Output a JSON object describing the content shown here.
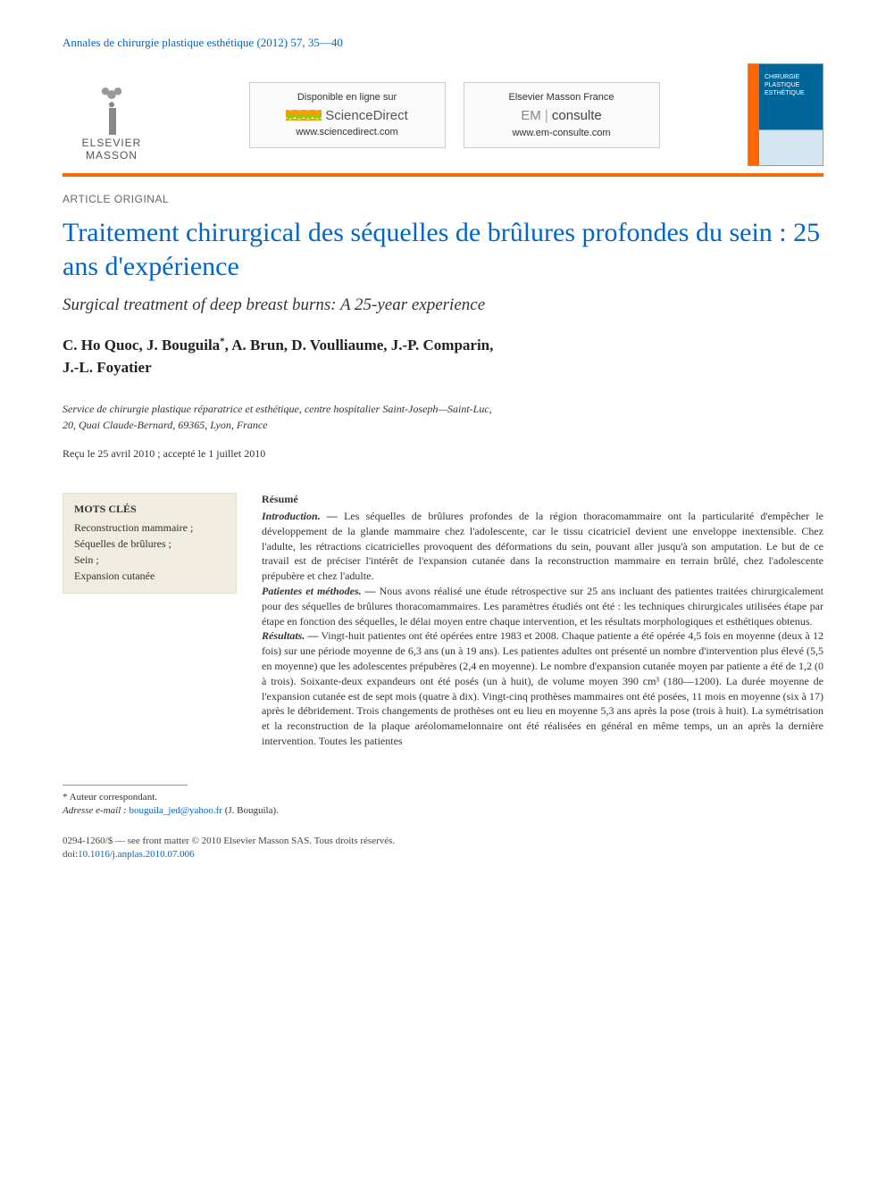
{
  "journal_ref": "Annales de chirurgie plastique esthétique (2012) 57, 35—40",
  "publisher": {
    "name1": "ELSEVIER",
    "name2": "MASSON"
  },
  "boxes": {
    "left": {
      "top": "Disponible en ligne sur",
      "brand": "ScienceDirect",
      "url": "www.sciencedirect.com"
    },
    "right": {
      "top": "Elsevier Masson France",
      "brand_em": "EM",
      "brand_consulte": "consulte",
      "url": "www.em-consulte.com"
    }
  },
  "cover": {
    "word1": "CHIRURGIE",
    "word2": "PLASTIQUE",
    "word3": "ESTHÉTIQUE"
  },
  "article_type": "ARTICLE ORIGINAL",
  "title_fr": "Traitement chirurgical des séquelles de brûlures profondes du sein : 25 ans d'expérience",
  "title_en": "Surgical treatment of deep breast burns: A 25-year experience",
  "authors_line1": "C. Ho Quoc, J. Bouguila",
  "authors_star": "*",
  "authors_line1b": ", A. Brun, D. Voulliaume, J.-P. Comparin,",
  "authors_line2": "J.-L. Foyatier",
  "affiliation_l1": "Service de chirurgie plastique réparatrice et esthétique, centre hospitalier Saint-Joseph—Saint-Luc,",
  "affiliation_l2": "20, Quai Claude-Bernard, 69365, Lyon, France",
  "dates": "Reçu le 25 avril 2010 ; accepté le 1 juillet 2010",
  "keywords": {
    "heading": "MOTS CLÉS",
    "items": "Reconstruction mammaire ;\nSéquelles de brûlures ;\nSein ;\nExpansion cutanée"
  },
  "abstract": {
    "heading": "Résumé",
    "intro_label": "Introduction. —",
    "intro_text": " Les séquelles de brûlures profondes de la région thoracomammaire ont la particularité d'empêcher le développement de la glande mammaire chez l'adolescente, car le tissu cicatriciel devient une enveloppe inextensible. Chez l'adulte, les rétractions cicatricielles provoquent des déformations du sein, pouvant aller jusqu'à son amputation. Le but de ce travail est de préciser l'intérêt de l'expansion cutanée dans la reconstruction mammaire en terrain brûlé, chez l'adolescente prépubère et chez l'adulte.",
    "methods_label": "Patientes et méthodes. —",
    "methods_text": " Nous avons réalisé une étude rétrospective sur 25 ans incluant des patientes traitées chirurgicalement pour des séquelles de brûlures thoracomammaires. Les paramètres étudiés ont été : les techniques chirurgicales utilisées étape par étape en fonction des séquelles, le délai moyen entre chaque intervention, et les résultats morphologiques et esthétiques obtenus.",
    "results_label": "Résultats. —",
    "results_text": " Vingt-huit patientes ont été opérées entre 1983 et 2008. Chaque patiente a été opérée 4,5 fois en moyenne (deux à 12 fois) sur une période moyenne de 6,3 ans (un à 19 ans). Les patientes adultes ont présenté un nombre d'intervention plus élevé (5,5 en moyenne) que les adolescentes prépubères (2,4 en moyenne). Le nombre d'expansion cutanée moyen par patiente a été de 1,2 (0 à trois). Soixante-deux expandeurs ont été posés (un à huit), de volume moyen 390 cm³ (180—1200). La durée moyenne de l'expansion cutanée est de sept mois (quatre à dix). Vingt-cinq prothèses mammaires ont été posées, 11 mois en moyenne (six à 17) après le débridement. Trois changements de prothèses ont eu lieu en moyenne 5,3 ans après la pose (trois à huit). La symétrisation et la reconstruction de la plaque aréolomamelonnaire ont été réalisées en général en même temps, un an après la dernière intervention. Toutes les patientes"
  },
  "footnote": {
    "corresponding": "* Auteur correspondant.",
    "email_label": "Adresse e-mail :",
    "email": "bouguila_jed@yahoo.fr",
    "email_tail": " (J. Bouguila)."
  },
  "copyright": {
    "line1": "0294-1260/$ — see front matter © 2010 Elsevier Masson SAS. Tous droits réservés.",
    "doi_label": "doi:",
    "doi": "10.1016/j.anplas.2010.07.006"
  },
  "colors": {
    "accent_orange": "#ff6600",
    "link_blue": "#0066cc",
    "keywords_bg": "#f0ece0"
  }
}
